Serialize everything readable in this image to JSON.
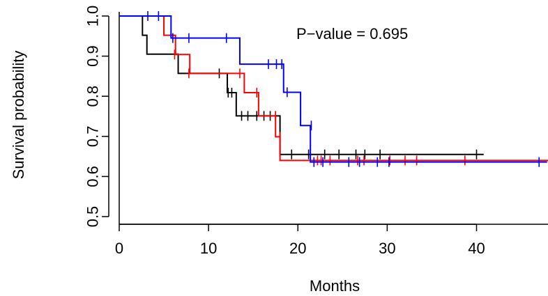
{
  "chart_data": {
    "type": "line",
    "xlabel": "Months",
    "ylabel": "Survival probability",
    "xlim": [
      0,
      48
    ],
    "ylim": [
      0.5,
      1.0
    ],
    "x_ticks": [
      0,
      10,
      20,
      30,
      40
    ],
    "y_ticks": [
      0.5,
      0.6,
      0.7,
      0.8,
      0.9,
      1.0
    ],
    "x_tick_labels": [
      "0",
      "10",
      "20",
      "30",
      "40"
    ],
    "y_tick_labels": [
      "0.5",
      "0.6",
      "0.7",
      "0.8",
      "0.9",
      "1.0"
    ],
    "annotation": "P−value = 0.695",
    "series": [
      {
        "color": "#000000",
        "steps": [
          [
            0,
            1.0
          ],
          [
            2.6,
            0.952
          ],
          [
            3.1,
            0.905
          ],
          [
            6.6,
            0.857
          ],
          [
            12.1,
            0.809
          ],
          [
            13.1,
            0.751
          ],
          [
            18.0,
            0.655
          ],
          [
            40.8,
            0.655
          ]
        ],
        "censors": [
          [
            11.2,
            0.857
          ],
          [
            12.2,
            0.809
          ],
          [
            12.6,
            0.809
          ],
          [
            13.7,
            0.751
          ],
          [
            14.4,
            0.751
          ],
          [
            15.4,
            0.751
          ],
          [
            16.2,
            0.751
          ],
          [
            16.9,
            0.751
          ],
          [
            17.5,
            0.751
          ],
          [
            19.3,
            0.655
          ],
          [
            21.2,
            0.655
          ],
          [
            23.0,
            0.655
          ],
          [
            24.6,
            0.655
          ],
          [
            26.5,
            0.655
          ],
          [
            27.5,
            0.655
          ],
          [
            29.2,
            0.655
          ],
          [
            40.0,
            0.655
          ]
        ]
      },
      {
        "color": "#ff0000",
        "steps": [
          [
            0,
            1.0
          ],
          [
            5.0,
            0.952
          ],
          [
            6.3,
            0.904
          ],
          [
            7.9,
            0.857
          ],
          [
            14.0,
            0.809
          ],
          [
            15.6,
            0.751
          ],
          [
            17.5,
            0.699
          ],
          [
            18.0,
            0.64
          ],
          [
            48.0,
            0.64
          ]
        ],
        "censors": [
          [
            6.2,
            0.904
          ],
          [
            7.8,
            0.857
          ],
          [
            13.5,
            0.857
          ],
          [
            15.4,
            0.809
          ],
          [
            17.5,
            0.751
          ],
          [
            18.0,
            0.699
          ],
          [
            22.2,
            0.64
          ],
          [
            22.6,
            0.64
          ],
          [
            23.6,
            0.64
          ],
          [
            26.7,
            0.64
          ],
          [
            27.4,
            0.64
          ],
          [
            30.3,
            0.64
          ],
          [
            32.0,
            0.64
          ],
          [
            33.3,
            0.64
          ],
          [
            38.7,
            0.64
          ]
        ]
      },
      {
        "color": "#0000ff",
        "steps": [
          [
            0,
            1.0
          ],
          [
            5.8,
            0.945
          ],
          [
            13.5,
            0.88
          ],
          [
            18.4,
            0.81
          ],
          [
            20.3,
            0.727
          ],
          [
            21.4,
            0.636
          ],
          [
            47.9,
            0.636
          ]
        ],
        "censors": [
          [
            3.2,
            1.0
          ],
          [
            4.4,
            1.0
          ],
          [
            6.0,
            0.945
          ],
          [
            7.8,
            0.945
          ],
          [
            12.0,
            0.945
          ],
          [
            16.7,
            0.88
          ],
          [
            17.6,
            0.88
          ],
          [
            18.2,
            0.88
          ],
          [
            18.8,
            0.81
          ],
          [
            21.5,
            0.727
          ],
          [
            21.8,
            0.636
          ],
          [
            22.8,
            0.636
          ],
          [
            25.7,
            0.636
          ],
          [
            26.9,
            0.636
          ],
          [
            28.9,
            0.636
          ],
          [
            30.2,
            0.636
          ],
          [
            47.0,
            0.636
          ]
        ]
      }
    ]
  }
}
